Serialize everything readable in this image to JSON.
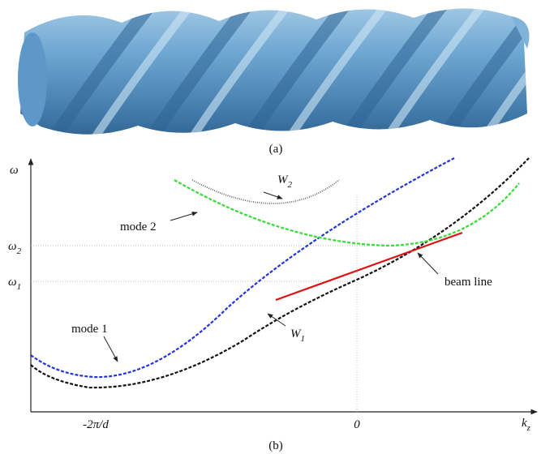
{
  "figure_a": {
    "caption": "(a)"
  },
  "figure_b": {
    "caption": "(b)",
    "y_axis": {
      "label": "ω",
      "ticks": [
        {
          "base": "ω",
          "sub": "2"
        },
        {
          "base": "ω",
          "sub": "1"
        }
      ]
    },
    "x_axis": {
      "label": {
        "base": "k",
        "sub": "z"
      },
      "ticks": [
        "-2π/d",
        "0"
      ]
    },
    "curves": [
      {
        "base": "W",
        "sub": "2"
      },
      {
        "label": "mode 2"
      },
      {
        "label": "mode 1"
      },
      {
        "base": "W",
        "sub": "1"
      },
      {
        "label": "beam line"
      }
    ]
  }
}
